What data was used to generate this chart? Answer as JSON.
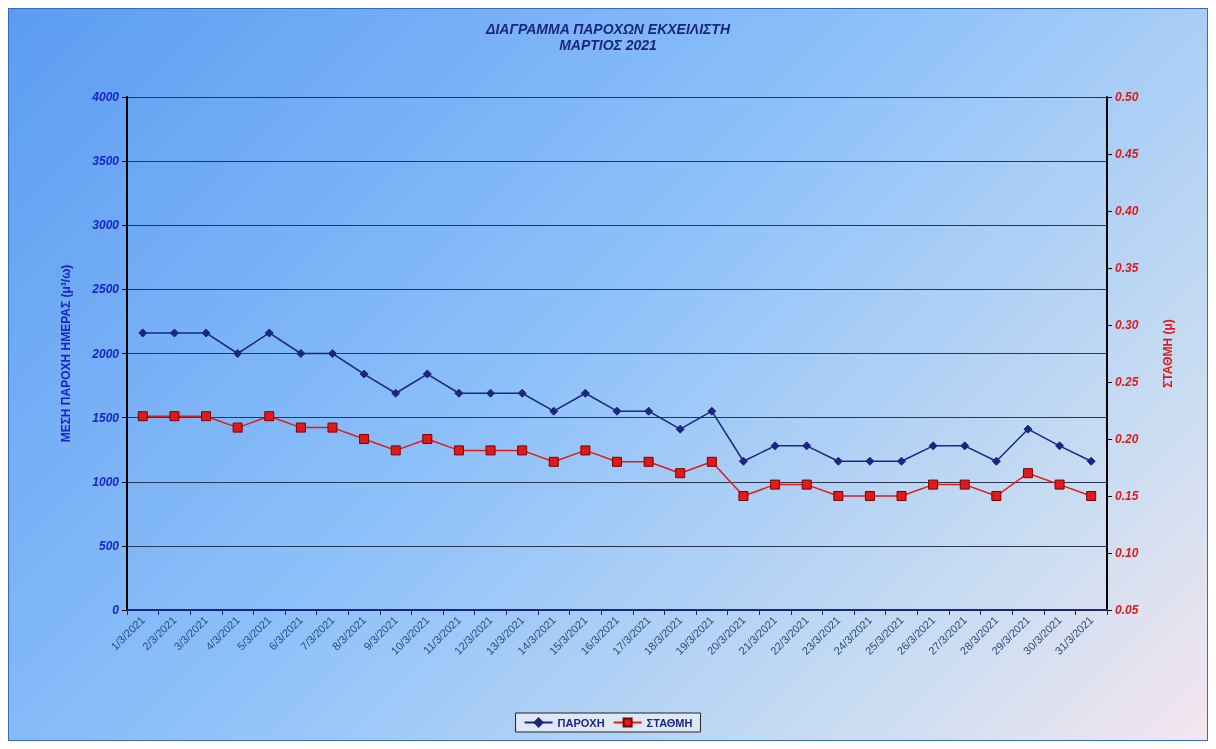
{
  "chart_data": {
    "type": "line",
    "title": "ΔΙΑΓΡΑΜΜΑ ΠΑΡΟΧΩΝ ΕΚΧΕΙΛΙΣΤΗ",
    "subtitle": "ΜΑΡΤΙΟΣ 2021",
    "ylabel": "ΜΕΣΗ ΠΑΡΟΧΗ ΗΜΕΡΑΣ (μ³/ω)",
    "y2label": "ΣΤΑΘΜΗ (μ)",
    "categories": [
      "1/3/2021",
      "2/3/2021",
      "3/3/2021",
      "4/3/2021",
      "5/3/2021",
      "6/3/2021",
      "7/3/2021",
      "8/3/2021",
      "9/3/2021",
      "10/3/2021",
      "11/3/2021",
      "12/3/2021",
      "13/3/2021",
      "14/3/2021",
      "15/3/2021",
      "16/3/2021",
      "17/3/2021",
      "18/3/2021",
      "19/3/2021",
      "20/3/2021",
      "21/3/2021",
      "22/3/2021",
      "23/3/2021",
      "24/3/2021",
      "25/3/2021",
      "26/3/2021",
      "27/3/2021",
      "28/3/2021",
      "29/3/2021",
      "30/3/2021",
      "31/3/2021"
    ],
    "series": [
      {
        "name": "ΠΑΡΟΧΗ",
        "color": "#1c2580",
        "marker": "diamond",
        "values": [
          2160,
          2160,
          2160,
          2000,
          2160,
          2000,
          2000,
          1840,
          1690,
          1840,
          1690,
          1690,
          1690,
          1550,
          1690,
          1550,
          1550,
          1410,
          1550,
          1160,
          1280,
          1280,
          1160,
          1160,
          1160,
          1280,
          1280,
          1160,
          1410,
          1280,
          1160
        ]
      },
      {
        "name": "ΣΤΑΘΜΗ",
        "color": "#e01a1a",
        "marker": "square",
        "axis": "y2",
        "values": [
          0.22,
          0.22,
          0.22,
          0.21,
          0.22,
          0.21,
          0.21,
          0.2,
          0.19,
          0.2,
          0.19,
          0.19,
          0.19,
          0.18,
          0.19,
          0.18,
          0.18,
          0.17,
          0.18,
          0.15,
          0.16,
          0.16,
          0.15,
          0.15,
          0.15,
          0.16,
          0.16,
          0.15,
          0.17,
          0.16,
          0.15
        ]
      }
    ],
    "ylim": [
      0,
      4000
    ],
    "yticks": [
      0,
      500,
      1000,
      1500,
      2000,
      2500,
      3000,
      3500,
      4000
    ],
    "y2lim": [
      0.05,
      0.5
    ],
    "y2ticks": [
      0.05,
      {
        "value": 0.1,
        "label": "0.10"
      },
      0.15,
      {
        "value": 0.2,
        "label": "0.20"
      },
      0.25,
      {
        "value": 0.3,
        "label": "0.30"
      },
      0.35,
      {
        "value": 0.4,
        "label": "0.40"
      },
      0.45,
      {
        "value": 0.5,
        "label": "0.50"
      }
    ],
    "grid": "y",
    "legend": "bottom",
    "line_style": "solid"
  }
}
